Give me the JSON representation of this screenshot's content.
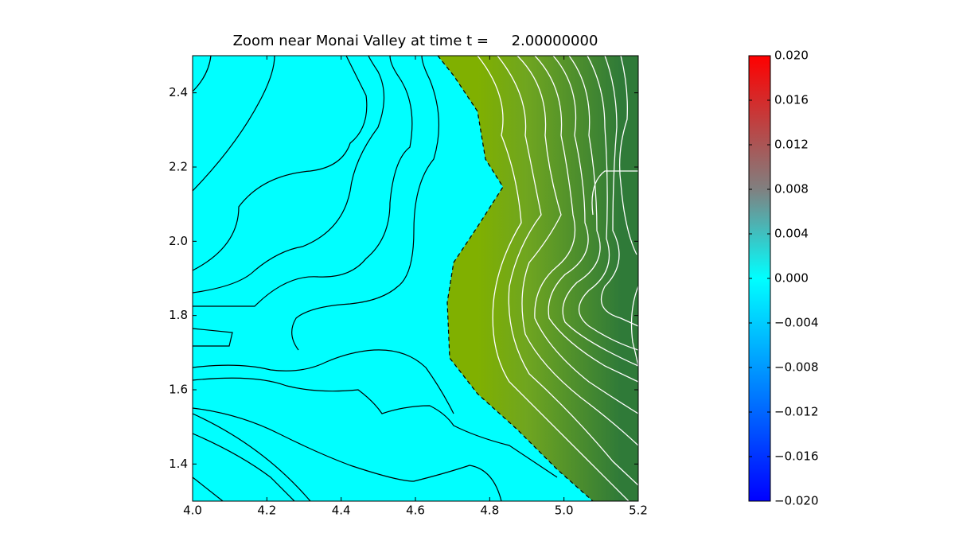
{
  "chart_data": {
    "type": "contour",
    "title": "Zoom near Monai Valley at time t =     2.00000000",
    "xlim": [
      4.0,
      5.2
    ],
    "ylim": [
      1.3,
      2.5
    ],
    "xticks": [
      {
        "value": 4.0,
        "label": "4.0"
      },
      4.2,
      4.4,
      4.6,
      4.8,
      {
        "value": 5.0,
        "label": "5.0"
      },
      5.2
    ],
    "yticks": [
      1.4,
      1.6,
      1.8,
      {
        "value": 2.0,
        "label": "2.0"
      },
      2.2,
      2.4
    ],
    "colorbar": {
      "lim": [
        -0.02,
        0.02
      ],
      "ticks": [
        {
          "value": 0.02,
          "label": "0.020"
        },
        {
          "value": 0.016,
          "label": "0.016"
        },
        {
          "value": 0.012,
          "label": "0.012"
        },
        {
          "value": 0.008,
          "label": "0.008"
        },
        {
          "value": 0.004,
          "label": "0.004"
        },
        {
          "value": 0,
          "label": "0.000"
        },
        {
          "value": -0.004,
          "label": "−0.004"
        },
        {
          "value": -0.008,
          "label": "−0.008"
        },
        {
          "value": -0.012,
          "label": "−0.012"
        },
        {
          "value": -0.016,
          "label": "−0.016"
        },
        {
          "value": -0.02,
          "label": "−0.020"
        }
      ]
    }
  }
}
